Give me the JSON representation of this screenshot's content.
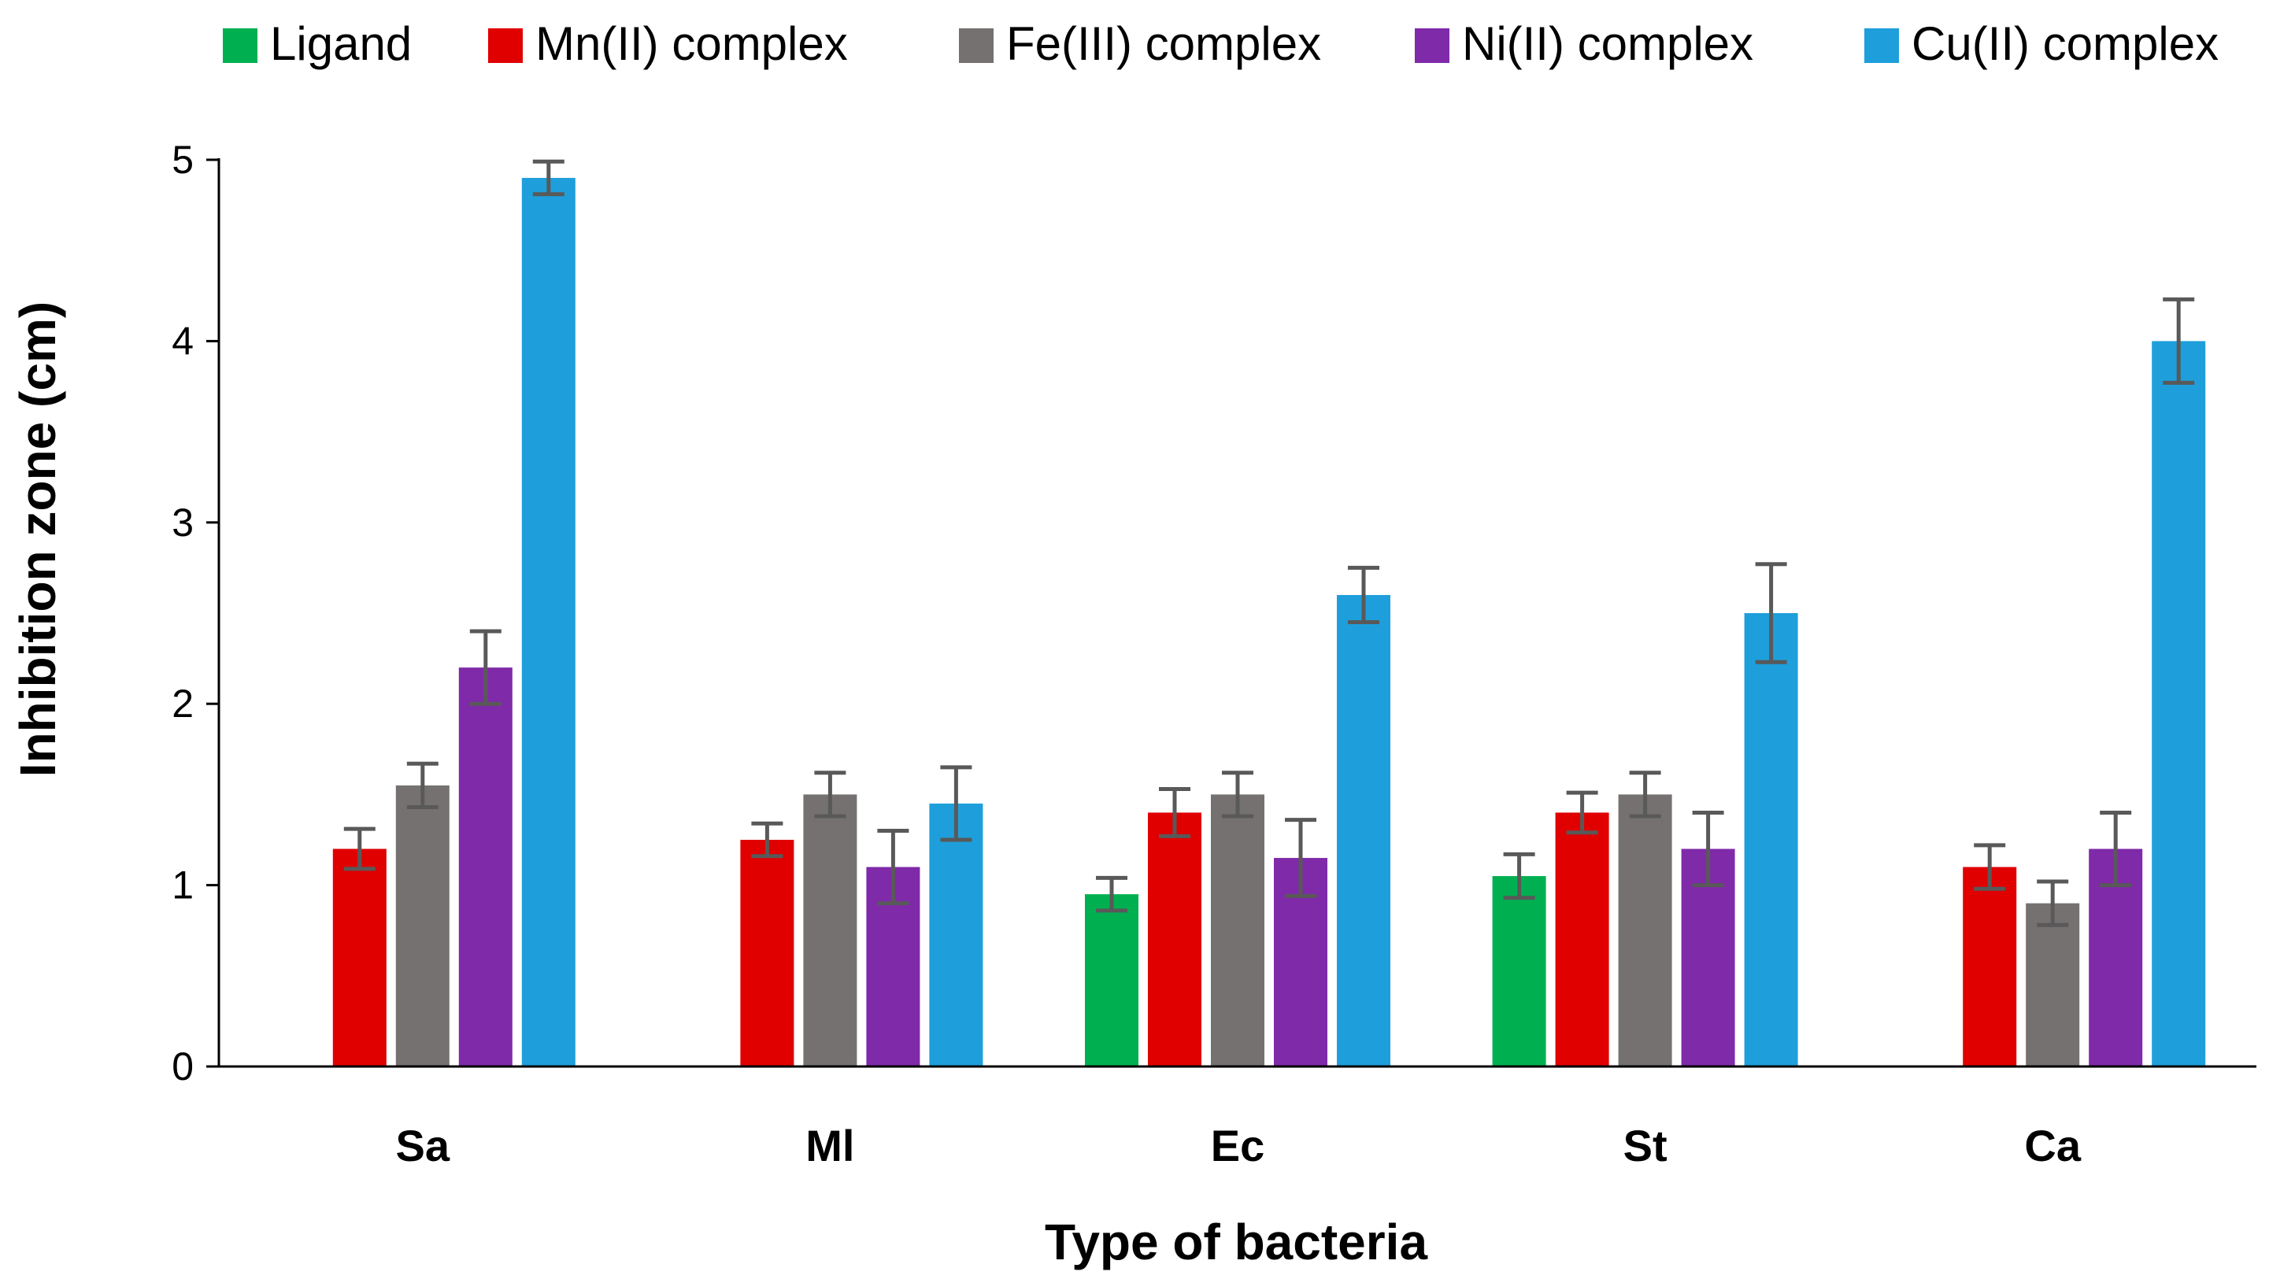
{
  "chart_data": {
    "type": "bar",
    "title": "",
    "xlabel": "Type of bacteria",
    "ylabel": "Inhibition zone (cm)",
    "ylim": [
      0,
      5
    ],
    "yticks": [
      "0",
      "1",
      "2",
      "3",
      "4",
      "5"
    ],
    "grid": false,
    "legend_position": "top",
    "categories": [
      "Sa",
      "Ml",
      "Ec",
      "St",
      "Ca"
    ],
    "series": [
      {
        "name": "Ligand",
        "color": "#00B050",
        "values": [
          null,
          null,
          0.95,
          1.05,
          null
        ],
        "errors": [
          null,
          null,
          0.09,
          0.12,
          null
        ]
      },
      {
        "name": "Mn(II) complex",
        "color": "#E00000",
        "values": [
          1.2,
          1.25,
          1.4,
          1.4,
          1.1
        ],
        "errors": [
          0.11,
          0.09,
          0.13,
          0.11,
          0.12
        ]
      },
      {
        "name": "Fe(III) complex",
        "color": "#767171",
        "values": [
          1.55,
          1.5,
          1.5,
          1.5,
          0.9
        ],
        "errors": [
          0.12,
          0.12,
          0.12,
          0.12,
          0.12
        ]
      },
      {
        "name": "Ni(II) complex",
        "color": "#7F2AA9",
        "values": [
          2.2,
          1.1,
          1.15,
          1.2,
          1.2
        ],
        "errors": [
          0.2,
          0.2,
          0.21,
          0.2,
          0.2
        ]
      },
      {
        "name": "Cu(II) complex",
        "color": "#1E9FDB",
        "values": [
          4.9,
          1.45,
          2.6,
          2.5,
          4.0
        ],
        "errors": [
          0.09,
          0.2,
          0.15,
          0.27,
          0.23
        ]
      }
    ]
  }
}
